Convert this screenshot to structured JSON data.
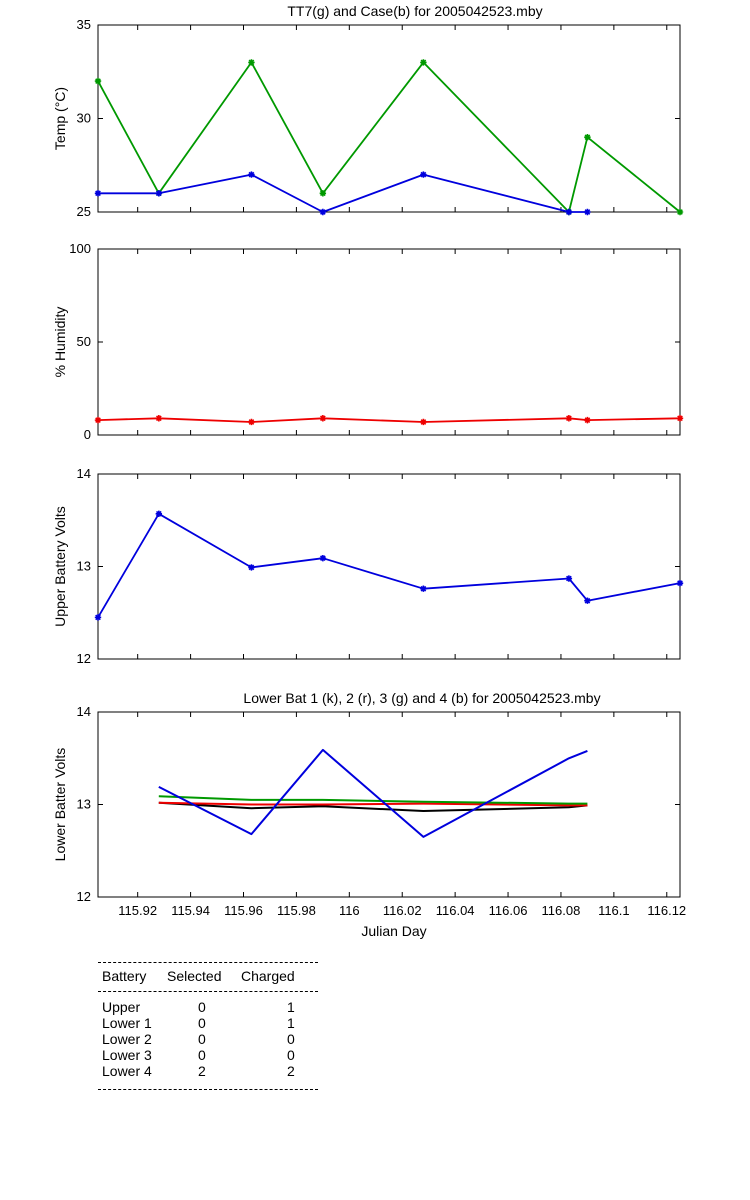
{
  "chart_data": [
    {
      "type": "line",
      "title": "TT7(g) and Case(b) for 2005042523.mby",
      "xlabel": "",
      "ylabel": "Temp  (°C)",
      "xlim": [
        115.905,
        116.125
      ],
      "ylim": [
        25,
        35
      ],
      "yticks": [
        25,
        30,
        35
      ],
      "marker": "*",
      "series": [
        {
          "color": "#009900",
          "x": [
            115.905,
            115.928,
            115.963,
            115.99,
            116.028,
            116.083,
            116.09,
            116.125
          ],
          "y": [
            32,
            26,
            33,
            26,
            33,
            25,
            29,
            25
          ]
        },
        {
          "color": "#0000dd",
          "x": [
            115.905,
            115.928,
            115.963,
            115.99,
            116.028,
            116.083,
            116.09,
            116.125
          ],
          "y": [
            26,
            26,
            27,
            25,
            27,
            25,
            25,
            null
          ]
        }
      ]
    },
    {
      "type": "line",
      "title": "",
      "xlabel": "",
      "ylabel": "% Humidity",
      "xlim": [
        115.905,
        116.125
      ],
      "ylim": [
        0,
        100
      ],
      "yticks": [
        0,
        50,
        100
      ],
      "marker": "*",
      "series": [
        {
          "color": "#ee0000",
          "x": [
            115.905,
            115.928,
            115.963,
            115.99,
            116.028,
            116.083,
            116.09,
            116.125
          ],
          "y": [
            8,
            9,
            7,
            9,
            7,
            9,
            8,
            9
          ]
        }
      ]
    },
    {
      "type": "line",
      "title": "",
      "xlabel": "",
      "ylabel": "Upper Battery Volts",
      "xlim": [
        115.905,
        116.125
      ],
      "ylim": [
        12,
        14
      ],
      "yticks": [
        12,
        13,
        14
      ],
      "marker": "*",
      "series": [
        {
          "color": "#0000dd",
          "x": [
            115.905,
            115.928,
            115.963,
            115.99,
            116.028,
            116.083,
            116.09,
            116.125
          ],
          "y": [
            12.45,
            13.57,
            12.99,
            13.09,
            12.76,
            12.87,
            12.63,
            12.82
          ]
        }
      ]
    },
    {
      "type": "line",
      "title": "Lower Bat 1 (k), 2 (r), 3 (g) and 4 (b) for 2005042523.mby",
      "xlabel": "Julian Day",
      "ylabel": "Lower Batter Volts",
      "xlim": [
        115.905,
        116.125
      ],
      "ylim": [
        12,
        14
      ],
      "yticks": [
        12,
        13,
        14
      ],
      "xticks": [
        115.92,
        115.94,
        115.96,
        115.98,
        116,
        116.02,
        116.04,
        116.06,
        116.08,
        116.1,
        116.12
      ],
      "xtick_labels": [
        "115.92",
        "115.94",
        "115.96",
        "115.98",
        "116",
        "116.02",
        "116.04",
        "116.06",
        "116.08",
        "116.1",
        "116.12"
      ],
      "marker": "none",
      "series": [
        {
          "color": "#000000",
          "x": [
            115.928,
            115.963,
            115.99,
            116.028,
            116.083,
            116.09
          ],
          "y": [
            13.02,
            12.96,
            12.98,
            12.93,
            12.97,
            12.99
          ]
        },
        {
          "color": "#ee0000",
          "x": [
            115.928,
            115.963,
            115.99,
            116.028,
            116.083,
            116.09
          ],
          "y": [
            13.02,
            13.0,
            13.0,
            13.01,
            12.99,
            12.99
          ]
        },
        {
          "color": "#009900",
          "x": [
            115.928,
            115.963,
            115.99,
            116.028,
            116.083,
            116.09
          ],
          "y": [
            13.09,
            13.05,
            13.05,
            13.03,
            13.01,
            13.01
          ]
        },
        {
          "color": "#0000dd",
          "x": [
            115.928,
            115.963,
            115.99,
            116.028,
            116.083,
            116.09
          ],
          "y": [
            13.19,
            12.68,
            13.59,
            12.65,
            13.5,
            13.58
          ]
        }
      ]
    }
  ],
  "summary": {
    "headers": [
      "Battery",
      "Selected",
      "Charged"
    ],
    "rows": [
      [
        "Upper",
        "0",
        "1"
      ],
      [
        "Lower 1",
        "0",
        "1"
      ],
      [
        "Lower 2",
        "0",
        "0"
      ],
      [
        "Lower 3",
        "0",
        "0"
      ],
      [
        "Lower 4",
        "2",
        "2"
      ]
    ]
  }
}
